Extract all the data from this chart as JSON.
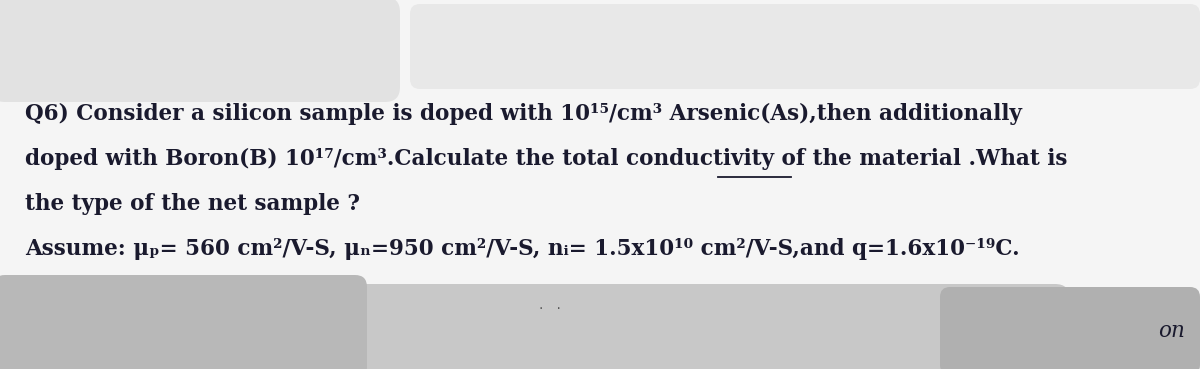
{
  "bg_color": "#dcdcdc",
  "redact_color": "#c8c8c8",
  "paper_color": "#f5f5f5",
  "text_color": "#1a1a2e",
  "line1": "Q6) Consider a silicon sample is doped with 10¹⁵/cm³ Arsenic(As),then additionally",
  "line2_pre": "doped with Boron(B) 10¹⁷/cm³.Calculate the ",
  "line2_ul": "total",
  "line2_post": " conductivity of the material .What is",
  "line3": "the type of the net sample ?",
  "line4": "Assume: μₚ= 560 cm²/V-S, μₙ=950 cm²/V-S, nᵢ= 1.5x10¹⁰ cm²/V-S,and q=1.6x10⁻¹⁹C.",
  "on_text": "on",
  "font_size": 15.5,
  "fig_width": 12.0,
  "fig_height": 3.69
}
